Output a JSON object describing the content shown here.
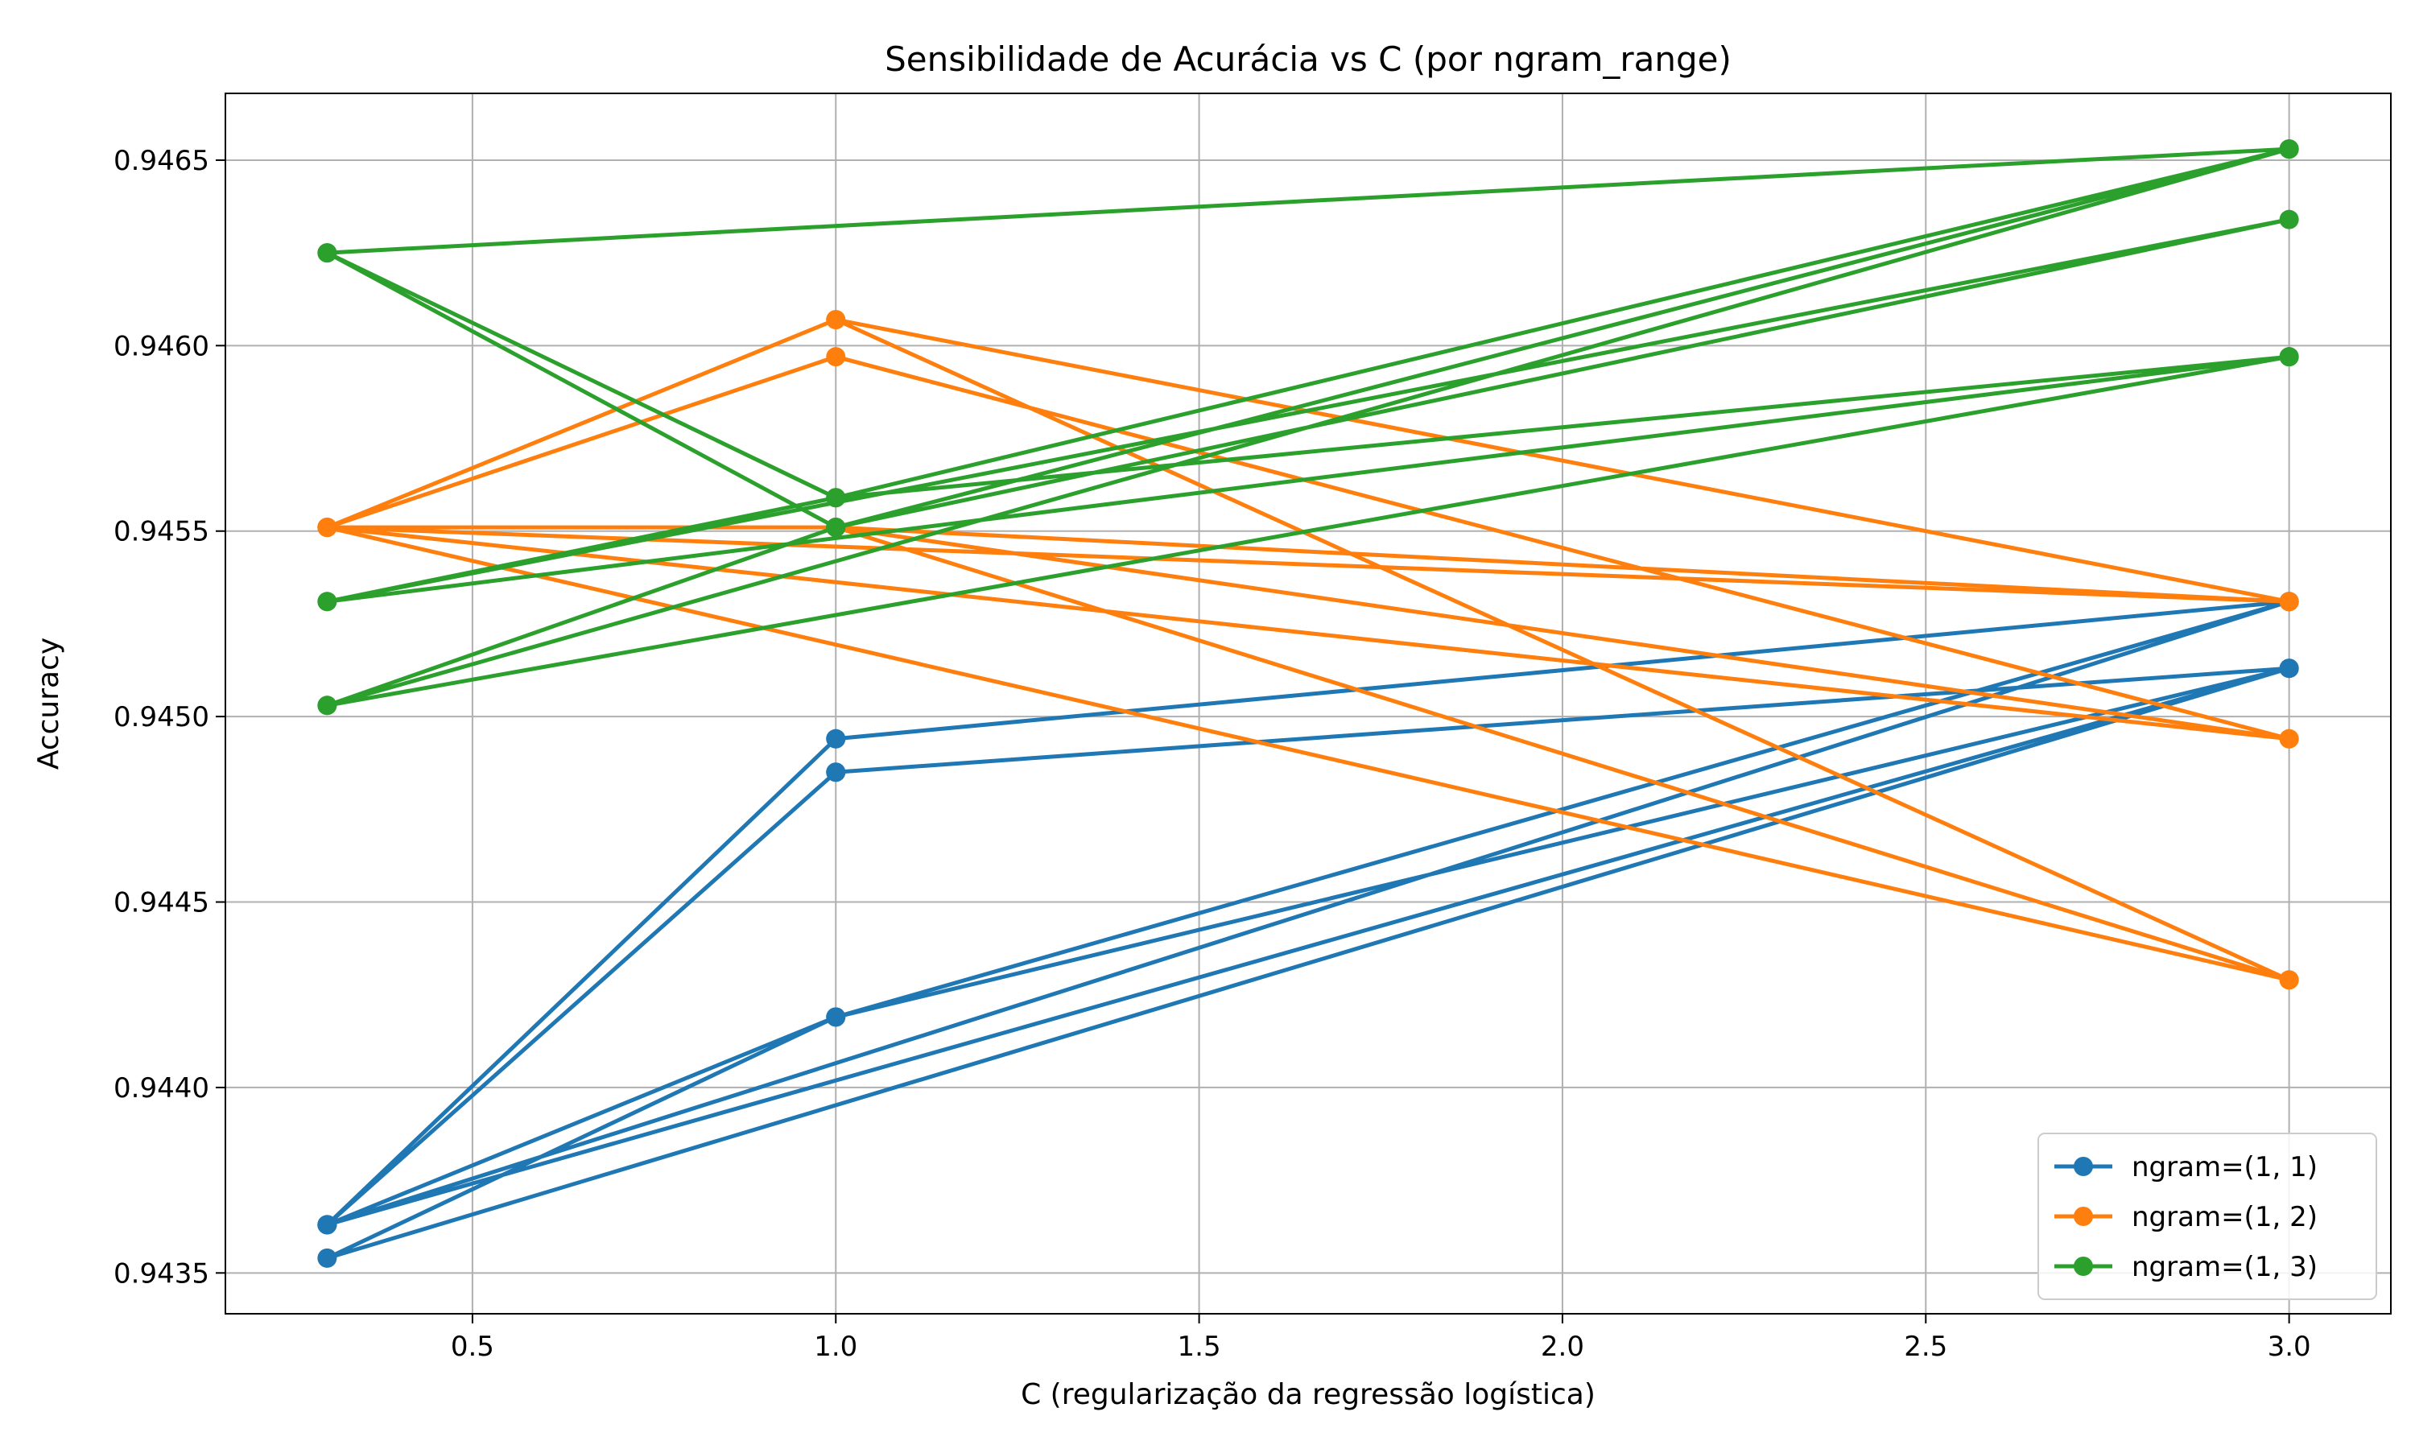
{
  "chart_data": {
    "type": "line",
    "title": "Sensibilidade de Acurácia vs C (por ngram_range)",
    "xlabel": "C (regularização da regressão logística)",
    "ylabel": "Accuracy",
    "xlim": [
      0.16,
      3.14
    ],
    "ylim": [
      0.94339,
      0.94668
    ],
    "xticks": [
      0.5,
      1.0,
      1.5,
      2.0,
      2.5,
      3.0
    ],
    "xtick_labels": [
      "0.5",
      "1.0",
      "1.5",
      "2.0",
      "2.5",
      "3.0"
    ],
    "yticks": [
      0.9435,
      0.944,
      0.9445,
      0.945,
      0.9455,
      0.946,
      0.9465
    ],
    "ytick_labels": [
      "0.9435",
      "0.9440",
      "0.9445",
      "0.9450",
      "0.9455",
      "0.9460",
      "0.9465"
    ],
    "grid": true,
    "legend_position": "bottom-right",
    "series": [
      {
        "name": "ngram=(1, 1)",
        "color": "#1f77b4",
        "x": [
          0.3,
          1.0,
          3.0,
          0.3,
          1.0,
          3.0,
          0.3,
          1.0,
          3.0,
          0.3,
          1.0,
          3.0,
          0.3,
          1.0,
          3.0,
          0.3,
          1.0,
          3.0
        ],
        "y": [
          0.94363,
          0.94494,
          0.94531,
          0.94363,
          0.94485,
          0.94513,
          0.94354,
          0.94419,
          0.94531,
          0.94363,
          0.94494,
          0.94531,
          0.94363,
          0.94485,
          0.94513,
          0.94363,
          0.94419,
          0.94513
        ]
      },
      {
        "name": "ngram=(1, 2)",
        "color": "#ff7f0e",
        "x": [
          0.3,
          1.0,
          3.0,
          0.3,
          1.0,
          3.0,
          0.3,
          1.0,
          3.0,
          0.3,
          1.0,
          3.0,
          0.3,
          1.0,
          3.0,
          0.3,
          1.0,
          3.0
        ],
        "y": [
          0.94551,
          0.94607,
          0.94429,
          0.94551,
          0.94597,
          0.94494,
          0.94551,
          0.94551,
          0.94531,
          0.94551,
          0.94607,
          0.94531,
          0.94551,
          0.94551,
          0.94494,
          0.94551,
          0.94551,
          0.94429
        ]
      },
      {
        "name": "ngram=(1, 3)",
        "color": "#2ca02c",
        "x": [
          0.3,
          1.0,
          3.0,
          0.3,
          1.0,
          3.0,
          0.3,
          1.0,
          3.0,
          0.3,
          1.0,
          3.0,
          0.3,
          1.0,
          3.0,
          0.3,
          1.0,
          3.0
        ],
        "y": [
          0.94625,
          0.94551,
          0.94653,
          0.94625,
          0.94559,
          0.94597,
          0.94531,
          0.94559,
          0.94653,
          0.94503,
          0.94551,
          0.94634,
          0.94531,
          0.94559,
          0.94597,
          0.94503,
          0.94551,
          0.94653
        ]
      }
    ]
  }
}
